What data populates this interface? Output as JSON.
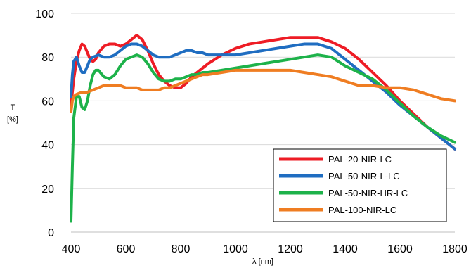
{
  "chart_data": {
    "type": "line",
    "title": "",
    "xlabel": "λ [nm]",
    "ylabel_lines": [
      "T",
      "[%]"
    ],
    "xlim": [
      400,
      1800
    ],
    "ylim": [
      0,
      100
    ],
    "xticks": [
      400,
      600,
      800,
      1000,
      1200,
      1400,
      1600,
      1800
    ],
    "yticks": [
      0,
      20,
      40,
      60,
      80,
      100
    ],
    "grid": "horizontal",
    "legend_position": "bottom-right",
    "series": [
      {
        "name": "PAL-20-NIR-LC",
        "color": "#ee1c25",
        "points": [
          [
            400,
            58
          ],
          [
            410,
            70
          ],
          [
            420,
            78
          ],
          [
            430,
            83
          ],
          [
            440,
            86
          ],
          [
            450,
            85
          ],
          [
            460,
            82
          ],
          [
            470,
            79
          ],
          [
            480,
            78
          ],
          [
            490,
            79
          ],
          [
            500,
            82
          ],
          [
            520,
            85
          ],
          [
            540,
            86
          ],
          [
            560,
            86
          ],
          [
            580,
            85
          ],
          [
            600,
            86
          ],
          [
            620,
            88
          ],
          [
            640,
            90
          ],
          [
            660,
            88
          ],
          [
            680,
            83
          ],
          [
            700,
            77
          ],
          [
            720,
            72
          ],
          [
            740,
            69
          ],
          [
            760,
            67
          ],
          [
            780,
            66
          ],
          [
            800,
            66
          ],
          [
            820,
            68
          ],
          [
            840,
            71
          ],
          [
            860,
            73
          ],
          [
            880,
            75
          ],
          [
            900,
            77
          ],
          [
            950,
            81
          ],
          [
            1000,
            84
          ],
          [
            1050,
            86
          ],
          [
            1100,
            87
          ],
          [
            1150,
            88
          ],
          [
            1200,
            89
          ],
          [
            1250,
            89
          ],
          [
            1300,
            89
          ],
          [
            1350,
            87
          ],
          [
            1400,
            84
          ],
          [
            1450,
            79
          ],
          [
            1500,
            73
          ],
          [
            1550,
            67
          ],
          [
            1600,
            60
          ],
          [
            1650,
            54
          ],
          [
            1700,
            48
          ],
          [
            1750,
            43
          ],
          [
            1800,
            38
          ]
        ]
      },
      {
        "name": "PAL-50-NIR-L-LC",
        "color": "#1f6dc1",
        "points": [
          [
            400,
            62
          ],
          [
            405,
            72
          ],
          [
            410,
            78
          ],
          [
            420,
            80
          ],
          [
            430,
            76
          ],
          [
            440,
            73
          ],
          [
            450,
            73
          ],
          [
            460,
            76
          ],
          [
            470,
            79
          ],
          [
            480,
            80
          ],
          [
            500,
            81
          ],
          [
            520,
            80
          ],
          [
            540,
            80
          ],
          [
            560,
            81
          ],
          [
            580,
            83
          ],
          [
            600,
            85
          ],
          [
            620,
            86
          ],
          [
            640,
            86
          ],
          [
            660,
            85
          ],
          [
            680,
            83
          ],
          [
            700,
            81
          ],
          [
            720,
            80
          ],
          [
            740,
            80
          ],
          [
            760,
            80
          ],
          [
            780,
            81
          ],
          [
            800,
            82
          ],
          [
            820,
            83
          ],
          [
            840,
            83
          ],
          [
            860,
            82
          ],
          [
            880,
            82
          ],
          [
            900,
            81
          ],
          [
            950,
            81
          ],
          [
            1000,
            81
          ],
          [
            1050,
            82
          ],
          [
            1100,
            83
          ],
          [
            1150,
            84
          ],
          [
            1200,
            85
          ],
          [
            1250,
            86
          ],
          [
            1300,
            86
          ],
          [
            1350,
            84
          ],
          [
            1400,
            79
          ],
          [
            1450,
            74
          ],
          [
            1500,
            69
          ],
          [
            1550,
            64
          ],
          [
            1600,
            58
          ],
          [
            1650,
            53
          ],
          [
            1700,
            48
          ],
          [
            1750,
            43
          ],
          [
            1800,
            38
          ]
        ]
      },
      {
        "name": "PAL-50-NIR-HR-LC",
        "color": "#1db24a",
        "points": [
          [
            400,
            5
          ],
          [
            405,
            30
          ],
          [
            410,
            52
          ],
          [
            420,
            62
          ],
          [
            430,
            62
          ],
          [
            440,
            57
          ],
          [
            450,
            56
          ],
          [
            460,
            60
          ],
          [
            470,
            67
          ],
          [
            480,
            72
          ],
          [
            490,
            74
          ],
          [
            500,
            74
          ],
          [
            520,
            71
          ],
          [
            540,
            70
          ],
          [
            560,
            72
          ],
          [
            580,
            76
          ],
          [
            600,
            79
          ],
          [
            620,
            80
          ],
          [
            640,
            81
          ],
          [
            660,
            80
          ],
          [
            680,
            77
          ],
          [
            700,
            73
          ],
          [
            720,
            70
          ],
          [
            740,
            69
          ],
          [
            760,
            69
          ],
          [
            780,
            70
          ],
          [
            800,
            70
          ],
          [
            820,
            71
          ],
          [
            840,
            72
          ],
          [
            860,
            72
          ],
          [
            880,
            73
          ],
          [
            900,
            73
          ],
          [
            950,
            74
          ],
          [
            1000,
            75
          ],
          [
            1050,
            76
          ],
          [
            1100,
            77
          ],
          [
            1150,
            78
          ],
          [
            1200,
            79
          ],
          [
            1250,
            80
          ],
          [
            1300,
            81
          ],
          [
            1350,
            80
          ],
          [
            1400,
            76
          ],
          [
            1450,
            73
          ],
          [
            1500,
            70
          ],
          [
            1550,
            65
          ],
          [
            1600,
            59
          ],
          [
            1650,
            53
          ],
          [
            1700,
            48
          ],
          [
            1750,
            44
          ],
          [
            1800,
            41
          ]
        ]
      },
      {
        "name": "PAL-100-NIR-LC",
        "color": "#ef7d22",
        "points": [
          [
            400,
            55
          ],
          [
            405,
            60
          ],
          [
            410,
            62
          ],
          [
            420,
            63
          ],
          [
            440,
            64
          ],
          [
            460,
            64
          ],
          [
            480,
            65
          ],
          [
            500,
            66
          ],
          [
            520,
            67
          ],
          [
            540,
            67
          ],
          [
            560,
            67
          ],
          [
            580,
            67
          ],
          [
            600,
            66
          ],
          [
            620,
            66
          ],
          [
            640,
            66
          ],
          [
            660,
            65
          ],
          [
            680,
            65
          ],
          [
            700,
            65
          ],
          [
            720,
            65
          ],
          [
            740,
            66
          ],
          [
            760,
            66
          ],
          [
            780,
            67
          ],
          [
            800,
            68
          ],
          [
            820,
            69
          ],
          [
            840,
            70
          ],
          [
            860,
            71
          ],
          [
            880,
            72
          ],
          [
            900,
            72
          ],
          [
            950,
            73
          ],
          [
            1000,
            74
          ],
          [
            1050,
            74
          ],
          [
            1100,
            74
          ],
          [
            1150,
            74
          ],
          [
            1200,
            74
          ],
          [
            1250,
            73
          ],
          [
            1300,
            72
          ],
          [
            1350,
            71
          ],
          [
            1400,
            69
          ],
          [
            1450,
            67
          ],
          [
            1500,
            67
          ],
          [
            1550,
            66
          ],
          [
            1600,
            66
          ],
          [
            1650,
            65
          ],
          [
            1700,
            63
          ],
          [
            1750,
            61
          ],
          [
            1800,
            60
          ]
        ]
      }
    ]
  }
}
